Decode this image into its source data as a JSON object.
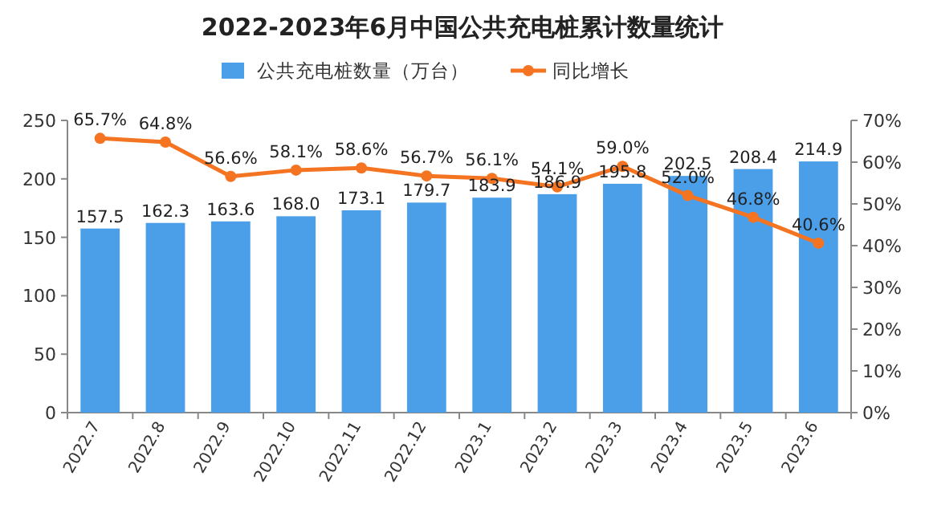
{
  "chart_data": {
    "type": "bar",
    "title": "2022-2023年6月中国公共充电桩累计数量统计",
    "categories": [
      "2022.7",
      "2022.8",
      "2022.9",
      "2022.10",
      "2022.11",
      "2022.12",
      "2023.1",
      "2023.2",
      "2023.3",
      "2023.4",
      "2023.5",
      "2023.6"
    ],
    "series": [
      {
        "name": "公共充电桩数量（万台）",
        "color": "#4b9fe9",
        "values": [
          157.5,
          162.3,
          163.6,
          168.0,
          173.1,
          179.7,
          183.9,
          186.9,
          195.8,
          202.5,
          208.4,
          214.9
        ],
        "value_labels": [
          "157.5",
          "162.3",
          "163.6",
          "168.0",
          "173.1",
          "179.7",
          "183.9",
          "186.9",
          "195.8",
          "202.5",
          "208.4",
          "214.9"
        ]
      },
      {
        "name": "同比增长",
        "type": "line",
        "axis": "y2",
        "color": "#f47422",
        "values": [
          65.7,
          64.8,
          56.6,
          58.1,
          58.6,
          56.7,
          56.1,
          54.1,
          59.0,
          52.0,
          46.8,
          40.6
        ],
        "value_labels": [
          "65.7%",
          "64.8%",
          "56.6%",
          "58.1%",
          "58.6%",
          "56.7%",
          "56.1%",
          "54.1%",
          "59.0%",
          "52.0%",
          "46.8%",
          "40.6%"
        ]
      }
    ],
    "marker": "circle",
    "ylim": [
      0,
      250
    ],
    "yticks": [
      0,
      50,
      100,
      150,
      200,
      250
    ],
    "y2lim": [
      0,
      70
    ],
    "y2ticks": [
      {
        "value": 0,
        "label": "0%"
      },
      {
        "value": 10,
        "label": "10%"
      },
      {
        "value": 20,
        "label": "20%"
      },
      {
        "value": 30,
        "label": "30%"
      },
      {
        "value": 40,
        "label": "40%"
      },
      {
        "value": 50,
        "label": "50%"
      },
      {
        "value": 60,
        "label": "60%"
      },
      {
        "value": 70,
        "label": "70%"
      }
    ],
    "legend": "top",
    "grid": false
  }
}
